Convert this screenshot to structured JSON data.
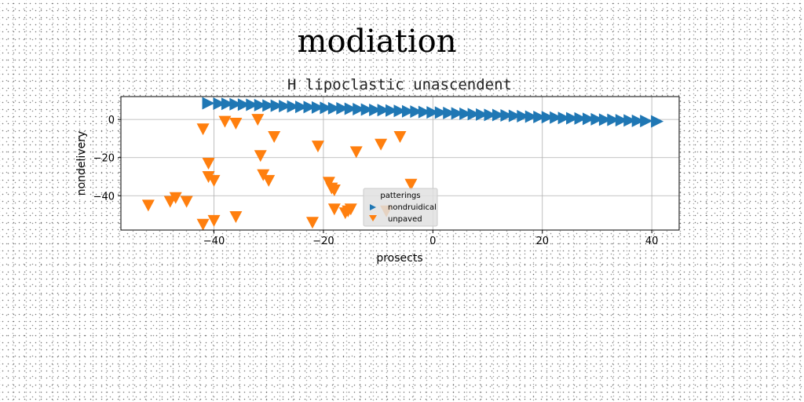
{
  "figure_title": "modiation",
  "chart_data": {
    "type": "scatter",
    "title": "H lipoclastic unascendent",
    "xlabel": "prosects",
    "ylabel": "nondelivery",
    "xlim": [
      -57,
      45
    ],
    "ylim": [
      -58,
      12
    ],
    "xticks": [
      -40,
      -20,
      0,
      20,
      40
    ],
    "yticks": [
      0,
      -20,
      -40
    ],
    "grid": true,
    "legend": {
      "title": "patterings",
      "placement": "lower-center"
    },
    "series": [
      {
        "name": "nondruidical",
        "marker": "triangle-right",
        "color": "#1f77b4",
        "x": [
          -41,
          -39,
          -37.5,
          -36,
          -34.5,
          -33,
          -31.5,
          -30,
          -28.5,
          -27,
          -25.5,
          -24,
          -22.5,
          -21,
          -19.5,
          -18,
          -16.5,
          -15,
          -13.5,
          -12,
          -10.5,
          -9,
          -7.5,
          -6,
          -4.5,
          -3,
          -1.5,
          0,
          1.5,
          3,
          4.5,
          6,
          7.5,
          9,
          10.5,
          12,
          13.5,
          15,
          16.5,
          18,
          19.5,
          21,
          22.5,
          24,
          25.5,
          27,
          28.5,
          30,
          31.5,
          33,
          34.5,
          36,
          37.5,
          39,
          41
        ],
        "y": [
          8.5,
          8.3,
          8.2,
          8.0,
          7.8,
          7.7,
          7.5,
          7.3,
          7.2,
          7.0,
          6.8,
          6.6,
          6.5,
          6.3,
          6.1,
          5.9,
          5.8,
          5.6,
          5.4,
          5.2,
          5.0,
          4.9,
          4.7,
          4.5,
          4.3,
          4.1,
          3.9,
          3.7,
          3.6,
          3.4,
          3.2,
          3.0,
          2.8,
          2.6,
          2.4,
          2.3,
          2.1,
          1.9,
          1.7,
          1.5,
          1.3,
          1.2,
          1.0,
          0.8,
          0.6,
          0.5,
          0.3,
          0.1,
          -0.1,
          -0.2,
          -0.4,
          -0.5,
          -0.7,
          -0.8,
          -1.0
        ]
      },
      {
        "name": "unpaved",
        "marker": "triangle-down",
        "color": "#ff7f0e",
        "x": [
          -52,
          -48,
          -47,
          -45,
          -42,
          -42,
          -41,
          -41,
          -40,
          -40,
          -38,
          -36,
          -36,
          -32,
          -31.5,
          -31,
          -30,
          -29,
          -22,
          -21,
          -19,
          -18.5,
          -18,
          -18,
          -16,
          -15.5,
          -15,
          -14,
          -9.5,
          -8.5,
          -6,
          -4
        ],
        "y": [
          -45,
          -43,
          -41,
          -43,
          -5,
          -55,
          -23,
          -30,
          -32,
          -53,
          -1,
          -51,
          -2,
          0,
          -19,
          -29,
          -32,
          -9,
          -54,
          -14,
          -33,
          -36,
          -37,
          -47,
          -49,
          -48,
          -47,
          -17,
          -13,
          -48,
          -9,
          -34
        ]
      }
    ]
  }
}
